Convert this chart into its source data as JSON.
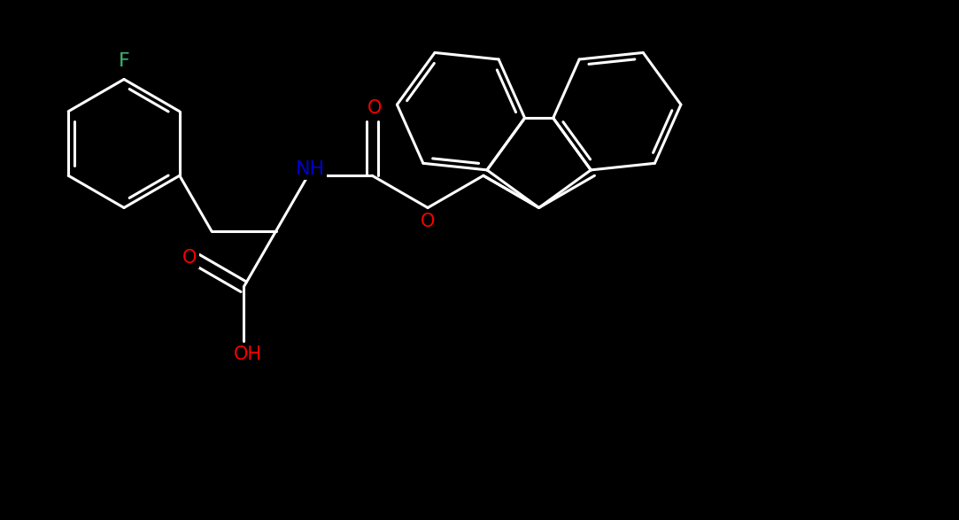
{
  "background_color": "#000000",
  "bond_color": "#ffffff",
  "atom_colors": {
    "F": "#3cb371",
    "N": "#0000cd",
    "O": "#ff0000",
    "H": "#ffffff",
    "C": "#ffffff"
  },
  "figsize": [
    10.83,
    5.87
  ],
  "dpi": 100,
  "xlim": [
    0,
    21.66
  ],
  "ylim": [
    0,
    11.74
  ]
}
